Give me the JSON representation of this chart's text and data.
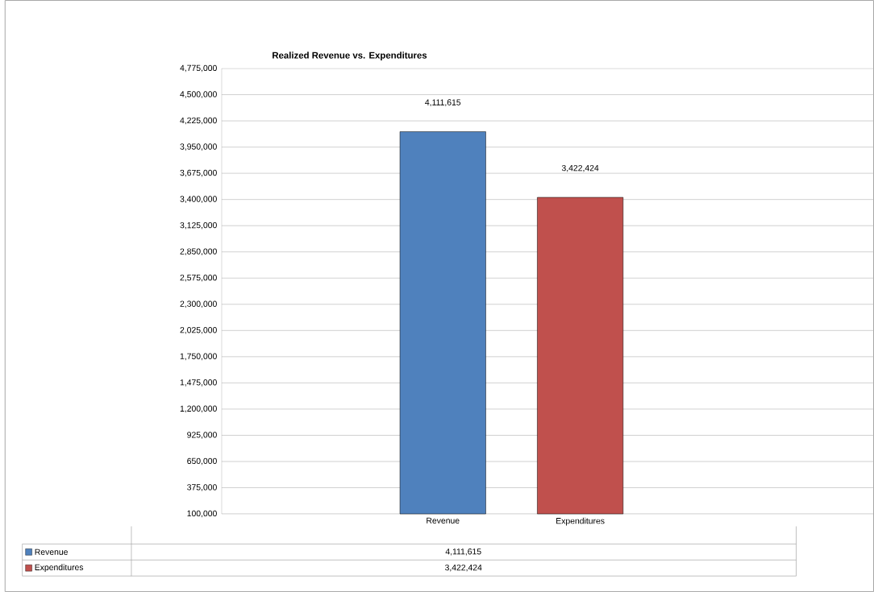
{
  "chart_data": {
    "type": "bar",
    "title": "Realized Revenue vs. Expenditures",
    "categories": [
      "Revenue",
      "Expenditures"
    ],
    "series": [
      {
        "name": "Revenue",
        "color": "#4f81bd",
        "values": [
          4111615,
          null
        ],
        "value_labels": [
          "4,111,615",
          null
        ]
      },
      {
        "name": "Expenditures",
        "color": "#c0504d",
        "values": [
          null,
          3422424
        ],
        "value_labels": [
          null,
          "3,422,424"
        ]
      }
    ],
    "ylim": [
      100000,
      4775000
    ],
    "yticks": [
      {
        "value": 100000,
        "label": "100,000"
      },
      {
        "value": 375000,
        "label": "375,000"
      },
      {
        "value": 650000,
        "label": "650,000"
      },
      {
        "value": 925000,
        "label": "925,000"
      },
      {
        "value": 1200000,
        "label": "1,200,000"
      },
      {
        "value": 1475000,
        "label": "1,475,000"
      },
      {
        "value": 1750000,
        "label": "1,750,000"
      },
      {
        "value": 2025000,
        "label": "2,025,000"
      },
      {
        "value": 2300000,
        "label": "2,300,000"
      },
      {
        "value": 2575000,
        "label": "2,575,000"
      },
      {
        "value": 2850000,
        "label": "2,850,000"
      },
      {
        "value": 3125000,
        "label": "3,125,000"
      },
      {
        "value": 3400000,
        "label": "3,400,000"
      },
      {
        "value": 3675000,
        "label": "3,675,000"
      },
      {
        "value": 3950000,
        "label": "3,950,000"
      },
      {
        "value": 4225000,
        "label": "4,225,000"
      },
      {
        "value": 4500000,
        "label": "4,500,000"
      },
      {
        "value": 4775000,
        "label": "4,775,000"
      }
    ],
    "grid": "y",
    "legend": "bottom"
  }
}
